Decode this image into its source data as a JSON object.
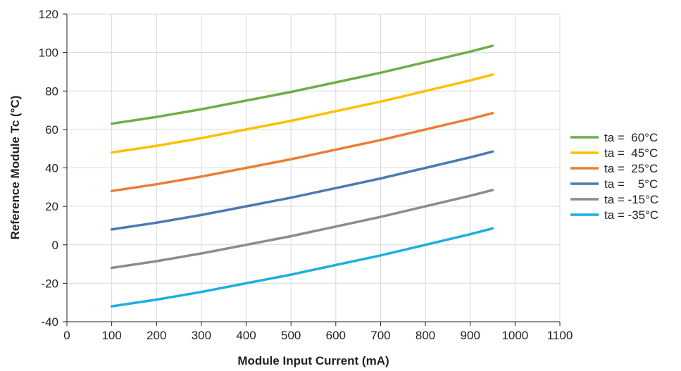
{
  "chart_data": {
    "type": "line",
    "xlabel": "Module Input Current (mA)",
    "ylabel": "Reference Module Tc (°C)",
    "xlim": [
      0,
      1100
    ],
    "ylim": [
      -40,
      120
    ],
    "xticks": [
      0,
      100,
      200,
      300,
      400,
      500,
      600,
      700,
      800,
      900,
      1000,
      1100
    ],
    "yticks": [
      -40,
      -20,
      0,
      20,
      40,
      60,
      80,
      100,
      120
    ],
    "grid": true,
    "legend_position": "right",
    "x": [
      100,
      200,
      300,
      400,
      500,
      600,
      700,
      800,
      900,
      950
    ],
    "series": [
      {
        "name": "ta =  60°C",
        "color": "#70ad47",
        "values": [
          63,
          66.5,
          70.5,
          75,
          79.5,
          84.5,
          89.5,
          95,
          100.5,
          103.5
        ]
      },
      {
        "name": "ta =  45°C",
        "color": "#ffc000",
        "values": [
          48,
          51.5,
          55.5,
          60,
          64.5,
          69.5,
          74.5,
          80,
          85.5,
          88.5
        ]
      },
      {
        "name": "ta =  25°C",
        "color": "#ed7d31",
        "values": [
          28,
          31.5,
          35.5,
          40,
          44.5,
          49.5,
          54.5,
          60,
          65.5,
          68.5
        ]
      },
      {
        "name": "ta =    5°C",
        "color": "#4a7ab0",
        "values": [
          8,
          11.5,
          15.5,
          20,
          24.5,
          29.5,
          34.5,
          40,
          45.5,
          48.5
        ]
      },
      {
        "name": "ta = -15°C",
        "color": "#8c8c8c",
        "values": [
          -12,
          -8.5,
          -4.5,
          0,
          4.5,
          9.5,
          14.5,
          20,
          25.5,
          28.5
        ]
      },
      {
        "name": "ta = -35°C",
        "color": "#1eaee0",
        "values": [
          -32,
          -28.5,
          -24.5,
          -20,
          -15.5,
          -10.5,
          -5.5,
          0,
          5.5,
          8.5
        ]
      }
    ]
  }
}
